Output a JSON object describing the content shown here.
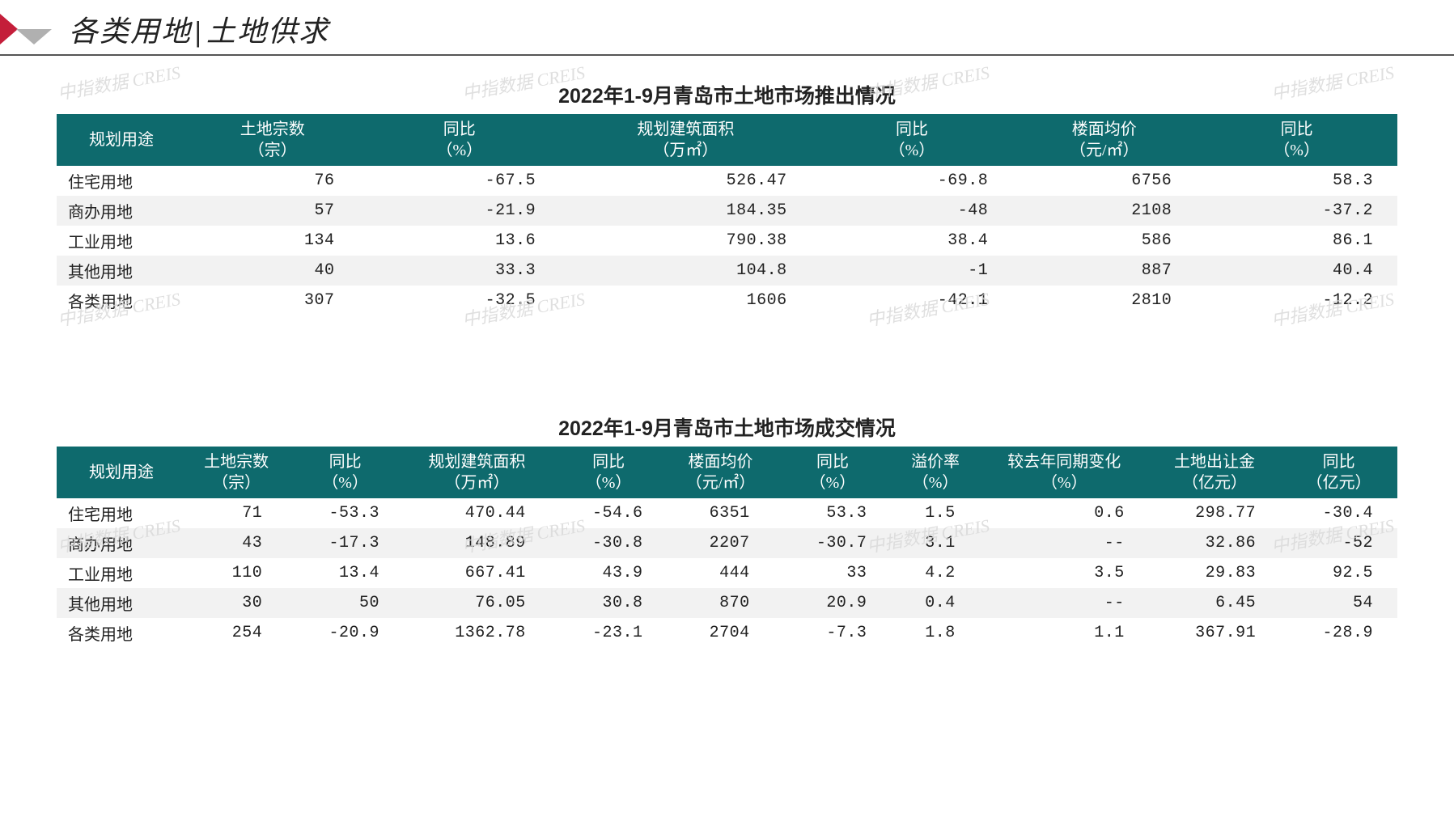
{
  "header": {
    "title_part1": "各类用地",
    "title_sep": "|",
    "title_part2": "土地供求"
  },
  "colors": {
    "header_bg": "#0e6a6d",
    "header_fg": "#ffffff",
    "row_alt_bg": "#f2f2f2",
    "row_bg": "#ffffff",
    "text": "#222222",
    "watermark": "#d8d8d8",
    "logo_red": "#c41e3a",
    "logo_grey": "#b0b0b0",
    "underline": "#555555"
  },
  "watermark_text": "中指数据 CREIS",
  "table1": {
    "title": "2022年1-9月青岛市土地市场推出情况",
    "columns": [
      {
        "l1": "规划用途",
        "l2": ""
      },
      {
        "l1": "土地宗数",
        "l2": "（宗）"
      },
      {
        "l1": "同比",
        "l2": "（%）"
      },
      {
        "l1": "规划建筑面积",
        "l2": "（万㎡）"
      },
      {
        "l1": "同比",
        "l2": "（%）"
      },
      {
        "l1": "楼面均价",
        "l2": "（元/㎡）"
      },
      {
        "l1": "同比",
        "l2": "（%）"
      }
    ],
    "rows": [
      {
        "label": "住宅用地",
        "v": [
          "76",
          "-67.5",
          "526.47",
          "-69.8",
          "6756",
          "58.3"
        ]
      },
      {
        "label": "商办用地",
        "v": [
          "57",
          "-21.9",
          "184.35",
          "-48",
          "2108",
          "-37.2"
        ]
      },
      {
        "label": "工业用地",
        "v": [
          "134",
          "13.6",
          "790.38",
          "38.4",
          "586",
          "86.1"
        ]
      },
      {
        "label": "其他用地",
        "v": [
          "40",
          "33.3",
          "104.8",
          "-1",
          "887",
          "40.4"
        ]
      },
      {
        "label": "各类用地",
        "v": [
          "307",
          "-32.5",
          "1606",
          "-42.1",
          "2810",
          "-12.2"
        ]
      }
    ]
  },
  "table2": {
    "title": "2022年1-9月青岛市土地市场成交情况",
    "columns": [
      {
        "l1": "规划用途",
        "l2": ""
      },
      {
        "l1": "土地宗数",
        "l2": "（宗）"
      },
      {
        "l1": "同比",
        "l2": "（%）"
      },
      {
        "l1": "规划建筑面积",
        "l2": "（万㎡）"
      },
      {
        "l1": "同比",
        "l2": "（%）"
      },
      {
        "l1": "楼面均价",
        "l2": "（元/㎡）"
      },
      {
        "l1": "同比",
        "l2": "（%）"
      },
      {
        "l1": "溢价率",
        "l2": "（%）"
      },
      {
        "l1": "较去年同期变化",
        "l2": "（%）"
      },
      {
        "l1": "土地出让金",
        "l2": "（亿元）"
      },
      {
        "l1": "同比",
        "l2": "（亿元）"
      }
    ],
    "rows": [
      {
        "label": "住宅用地",
        "v": [
          "71",
          "-53.3",
          "470.44",
          "-54.6",
          "6351",
          "53.3",
          "1.5",
          "0.6",
          "298.77",
          "-30.4"
        ]
      },
      {
        "label": "商办用地",
        "v": [
          "43",
          "-17.3",
          "148.89",
          "-30.8",
          "2207",
          "-30.7",
          "3.1",
          "--",
          "32.86",
          "-52"
        ]
      },
      {
        "label": "工业用地",
        "v": [
          "110",
          "13.4",
          "667.41",
          "43.9",
          "444",
          "33",
          "4.2",
          "3.5",
          "29.83",
          "92.5"
        ]
      },
      {
        "label": "其他用地",
        "v": [
          "30",
          "50",
          "76.05",
          "30.8",
          "870",
          "20.9",
          "0.4",
          "--",
          "6.45",
          "54"
        ]
      },
      {
        "label": "各类用地",
        "v": [
          "254",
          "-20.9",
          "1362.78",
          "-23.1",
          "2704",
          "-7.3",
          "1.8",
          "1.1",
          "367.91",
          "-28.9"
        ]
      }
    ]
  },
  "fontsize": {
    "page_title": 36,
    "section_title": 25,
    "table": 20,
    "watermark": 22
  }
}
